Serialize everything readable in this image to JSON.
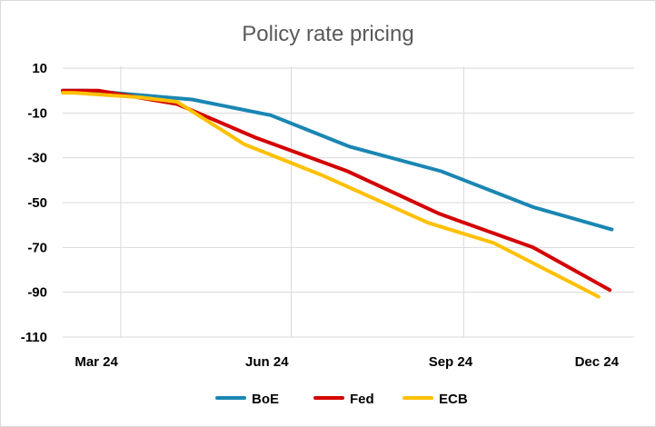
{
  "chart_data": {
    "type": "line",
    "title": "Policy rate pricing",
    "xlabel": "",
    "ylabel": "",
    "ylim": [
      -110,
      10
    ],
    "yticks": [
      10,
      -10,
      -30,
      -50,
      -70,
      -90,
      -110
    ],
    "xticks": [
      "Mar 24",
      "Jun 24",
      "Sep 24",
      "Dec 24"
    ],
    "grid": true,
    "legend_position": "bottom",
    "series": [
      {
        "name": "BoE",
        "color": "#1a86b3",
        "points": [
          {
            "x": "2024-03-01",
            "y": 0
          },
          {
            "x": "2024-03-14",
            "y": 0
          },
          {
            "x": "2024-05-09",
            "y": -4
          },
          {
            "x": "2024-06-20",
            "y": -11
          },
          {
            "x": "2024-08-01",
            "y": -25
          },
          {
            "x": "2024-09-19",
            "y": -36
          },
          {
            "x": "2024-11-07",
            "y": -52
          },
          {
            "x": "2024-12-19",
            "y": -62
          }
        ]
      },
      {
        "name": "Fed",
        "color": "#d40000",
        "points": [
          {
            "x": "2024-03-01",
            "y": 0
          },
          {
            "x": "2024-03-20",
            "y": 0
          },
          {
            "x": "2024-05-01",
            "y": -6
          },
          {
            "x": "2024-06-12",
            "y": -21
          },
          {
            "x": "2024-07-31",
            "y": -36
          },
          {
            "x": "2024-09-18",
            "y": -55
          },
          {
            "x": "2024-11-07",
            "y": -70
          },
          {
            "x": "2024-12-18",
            "y": -89
          }
        ]
      },
      {
        "name": "ECB",
        "color": "#ffc000",
        "points": [
          {
            "x": "2024-03-01",
            "y": -1
          },
          {
            "x": "2024-03-07",
            "y": -1
          },
          {
            "x": "2024-04-11",
            "y": -3
          },
          {
            "x": "2024-05-01",
            "y": -5
          },
          {
            "x": "2024-06-06",
            "y": -24
          },
          {
            "x": "2024-07-18",
            "y": -38
          },
          {
            "x": "2024-09-12",
            "y": -59
          },
          {
            "x": "2024-10-17",
            "y": -68
          },
          {
            "x": "2024-12-12",
            "y": -92
          }
        ]
      }
    ]
  }
}
